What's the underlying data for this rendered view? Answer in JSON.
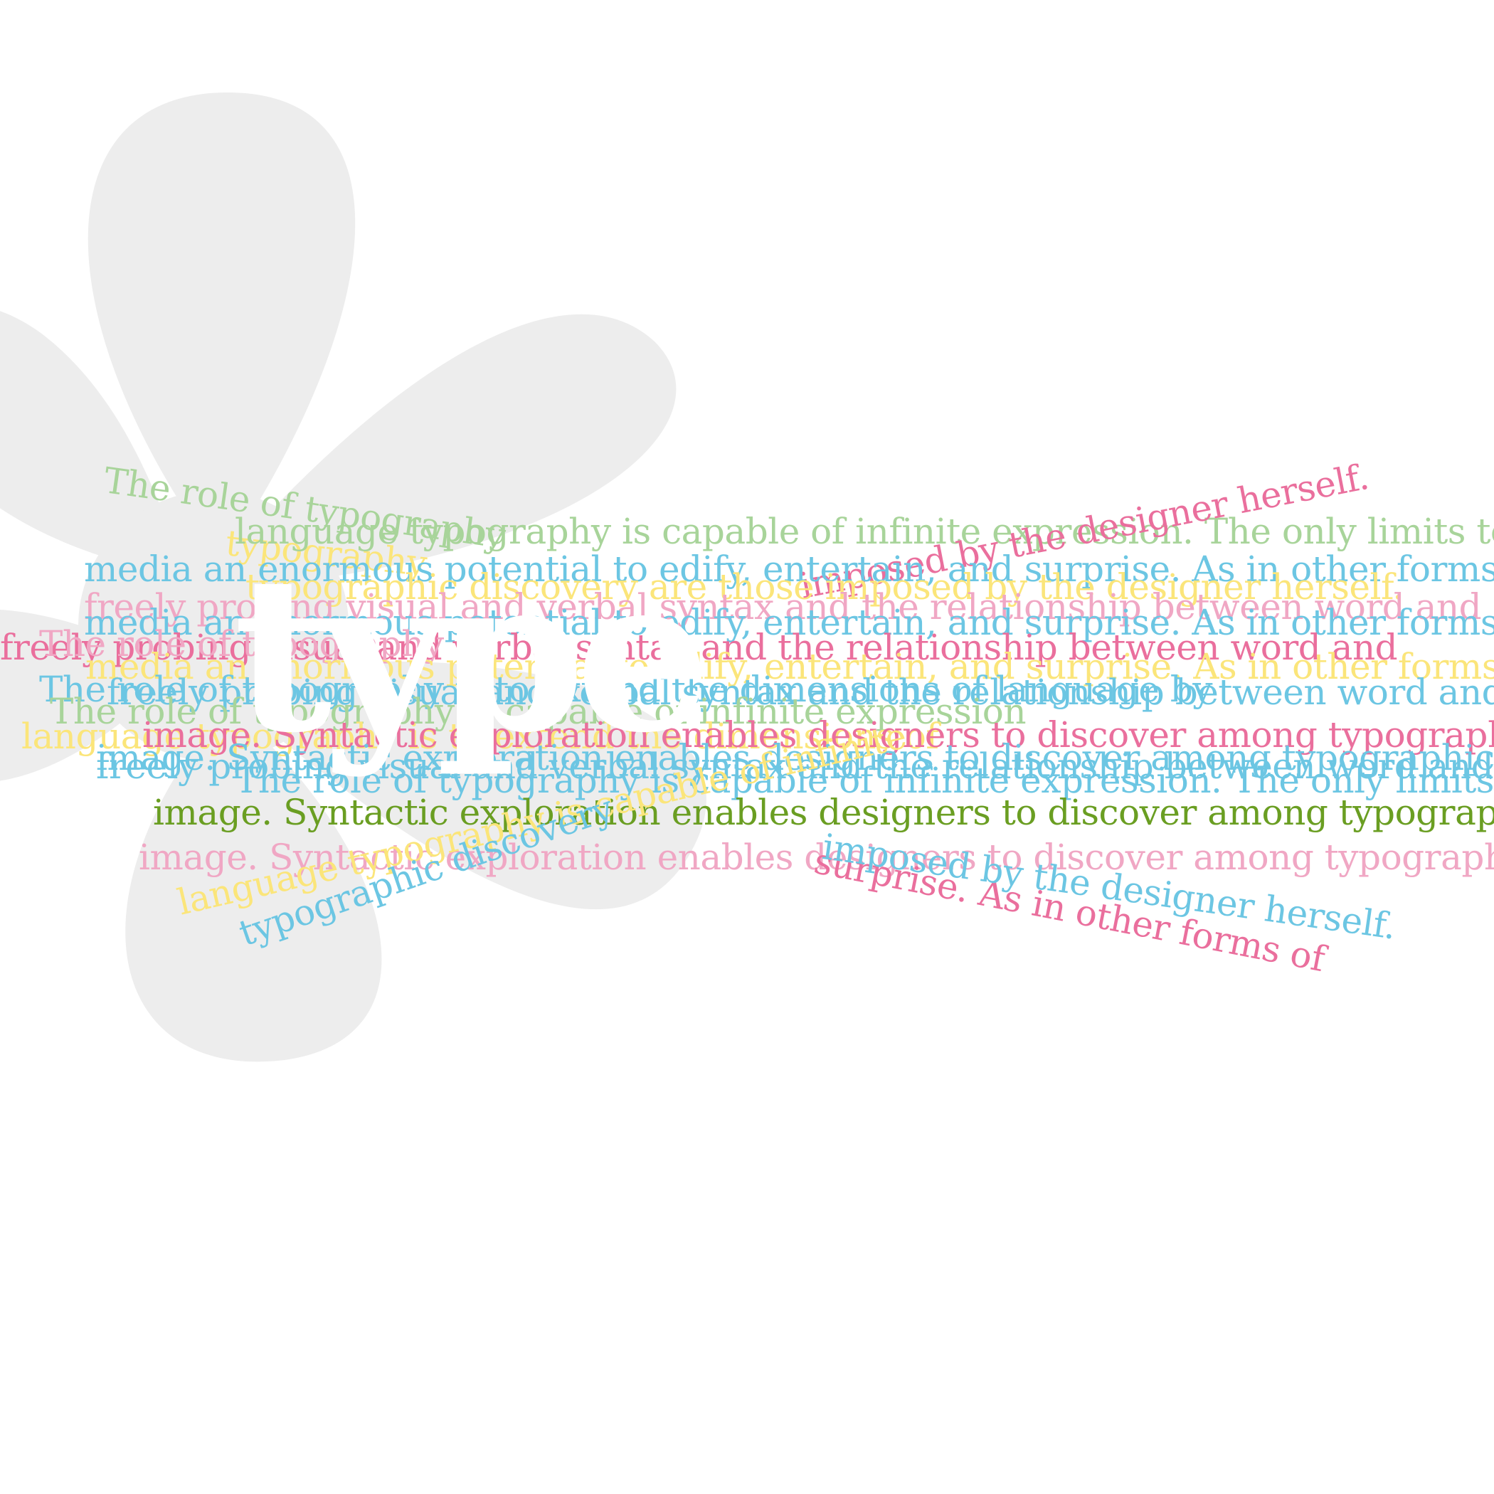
{
  "poster": {
    "headline": "type",
    "background_color": "#ffffff",
    "flower_icon": "asterisk-flower-icon",
    "flower_color": "#ededed",
    "palette": {
      "green": "#a8d49a",
      "dark_green": "#6a9e22",
      "blue": "#6cc6e3",
      "pink": "#ea6f9d",
      "light_pink": "#f0a7c4",
      "yellow": "#fbe57a"
    },
    "lines": [
      "The role of typography",
      "typography",
      "language typography is capable of infinite expression. The only limits to",
      "imposed by the designer herself.",
      "media an enormous potential to edify, entertain, and surprise. As in other forms of",
      "typographic discovery are those imposed by the designer herself.",
      "freely probing visual and verbal syntax and the relationship between word and",
      "media an enormous potential to edify, entertain, and surprise. As in other forms of",
      "freely probing visual and verbal syntax and the relationship between word and",
      "The role of typography",
      "media an enormous potential to edify, entertain, and surprise. As in other forms of",
      "The role of typography is to extend the dimensions of language by",
      "freely probing visual and verbal syntax and the relationship between word and",
      "The role of typography is capable of infinite expression",
      "language typography is to extend the dimensions of",
      "image. Syntactic exploration enables designers to discover among typographic",
      "image. Syntactic exploration enables designers to discover among typographic",
      "freely probing visual and verbal syntax and the relationship between word and",
      "The role of typography is capable of infinite expression. The only limits to",
      "image. Syntactic exploration enables designers to discover among typographic",
      "image. Syntactic exploration enables designers to discover among typographic",
      "language typography is capable of infinite",
      "typographic discovery",
      "surprise. As in other forms of",
      "imposed by the designer herself."
    ]
  }
}
